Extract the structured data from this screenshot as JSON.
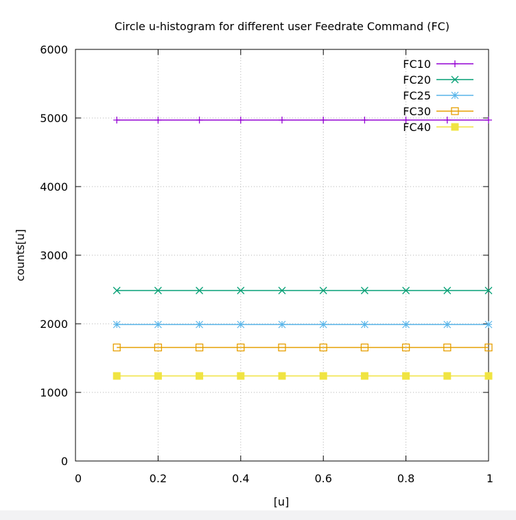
{
  "chart_data": {
    "type": "line",
    "title": "Circle u-histogram for different user Feedrate Command (FC)",
    "xlabel": "[u]",
    "ylabel": "counts[u]",
    "xlim": [
      0,
      1
    ],
    "ylim": [
      0,
      6000
    ],
    "xticks": [
      "0",
      "0.2",
      "0.4",
      "0.6",
      "0.8",
      "1"
    ],
    "yticks": [
      "0",
      "1000",
      "2000",
      "3000",
      "4000",
      "5000",
      "6000"
    ],
    "grid": true,
    "legend_position": "top-right",
    "x": [
      0.1,
      0.2,
      0.3,
      0.4,
      0.5,
      0.6,
      0.7,
      0.8,
      0.9,
      1.0
    ],
    "series": [
      {
        "name": "FC10",
        "color": "#9400d3",
        "marker": "plus",
        "values": [
          4970,
          4970,
          4970,
          4970,
          4970,
          4970,
          4970,
          4970,
          4970,
          4970
        ]
      },
      {
        "name": "FC20",
        "color": "#009e73",
        "marker": "cross",
        "values": [
          2485,
          2485,
          2485,
          2485,
          2485,
          2485,
          2485,
          2485,
          2485,
          2485
        ]
      },
      {
        "name": "FC25",
        "color": "#56b4e9",
        "marker": "star",
        "values": [
          1990,
          1990,
          1990,
          1990,
          1990,
          1990,
          1990,
          1990,
          1990,
          1990
        ]
      },
      {
        "name": "FC30",
        "color": "#e69f00",
        "marker": "open-square",
        "values": [
          1655,
          1655,
          1655,
          1655,
          1655,
          1655,
          1655,
          1655,
          1655,
          1655
        ]
      },
      {
        "name": "FC40",
        "color": "#f0e442",
        "marker": "filled-square",
        "values": [
          1240,
          1240,
          1240,
          1240,
          1240,
          1240,
          1240,
          1240,
          1240,
          1240
        ]
      }
    ]
  }
}
